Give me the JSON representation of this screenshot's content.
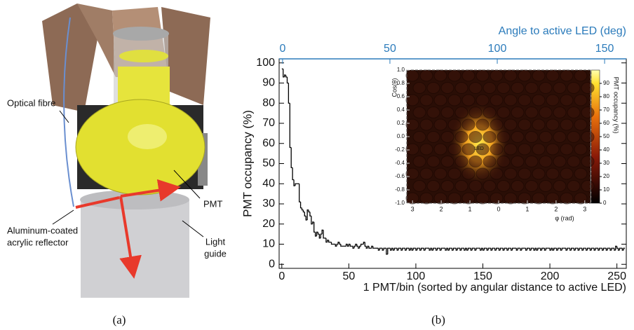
{
  "diagram": {
    "labels": {
      "optical_fibre": "Optical fibre",
      "pmt": "PMT",
      "light_guide": [
        "Light",
        "guide"
      ],
      "reflector": [
        "Aluminum-coated",
        "acrylic reflector"
      ]
    },
    "caption": "(a)"
  },
  "caption_b": "(b)",
  "chart_data": [
    {
      "type": "histogram",
      "ylabel": "PMT occupancy (%)",
      "xlabel": "1 PMT/bin (sorted by angular distance to active LED)",
      "x2label": "Angle to active LED (deg)",
      "x2color": "#2b7bbb",
      "color": "#000000",
      "xlim": [
        -2,
        257
      ],
      "xticks": [
        0,
        50,
        100,
        150,
        200,
        250
      ],
      "ylim": [
        -2,
        102
      ],
      "yticks": [
        0,
        10,
        20,
        30,
        40,
        50,
        60,
        70,
        80,
        90,
        100
      ],
      "x2lim": [
        -1.6,
        160.1
      ],
      "x2ticks": [
        0,
        50,
        100,
        150
      ],
      "bins": [
        0,
        1,
        2,
        3,
        4,
        5,
        6,
        7,
        8,
        9,
        10,
        11,
        12,
        13,
        14,
        15,
        16,
        17,
        18,
        19,
        20,
        21,
        22,
        23,
        24,
        25,
        26,
        27,
        28,
        29,
        30,
        31,
        32,
        33,
        34,
        35,
        36,
        37,
        38,
        39,
        40,
        41,
        42,
        43,
        44,
        45,
        46,
        47,
        48,
        49,
        50,
        51,
        52,
        53,
        54,
        55,
        56,
        57,
        58,
        59,
        60,
        61,
        62,
        63,
        64,
        65,
        66,
        67,
        68,
        69,
        70,
        71,
        72,
        73,
        74,
        75,
        76,
        77,
        78,
        79,
        80,
        81,
        82,
        83,
        84,
        85,
        86,
        87,
        88,
        89,
        90,
        91,
        92,
        93,
        94,
        95,
        96,
        97,
        98,
        99,
        100,
        101,
        102,
        103,
        104,
        105,
        106,
        107,
        108,
        109,
        110,
        111,
        112,
        113,
        114,
        115,
        116,
        117,
        118,
        119,
        120,
        121,
        122,
        123,
        124,
        125,
        126,
        127,
        128,
        129,
        130,
        131,
        132,
        133,
        134,
        135,
        136,
        137,
        138,
        139,
        140,
        141,
        142,
        143,
        144,
        145,
        146,
        147,
        148,
        149,
        150,
        151,
        152,
        153,
        154,
        155,
        156,
        157,
        158,
        159,
        160,
        161,
        162,
        163,
        164,
        165,
        166,
        167,
        168,
        169,
        170,
        171,
        172,
        173,
        174,
        175,
        176,
        177,
        178,
        179,
        180,
        181,
        182,
        183,
        184,
        185,
        186,
        187,
        188,
        189,
        190,
        191,
        192,
        193,
        194,
        195,
        196,
        197,
        198,
        199,
        200,
        201,
        202,
        203,
        204,
        205,
        206,
        207,
        208,
        209,
        210,
        211,
        212,
        213,
        214,
        215,
        216,
        217,
        218,
        219,
        220,
        221,
        222,
        223,
        224,
        225,
        226,
        227,
        228,
        229,
        230,
        231,
        232,
        233,
        234,
        235,
        236,
        237,
        238,
        239,
        240,
        241,
        242,
        243,
        244,
        245,
        246,
        247,
        248,
        249,
        250,
        251,
        252,
        253,
        254,
        255,
        256
      ],
      "values": [
        97,
        93,
        94,
        93,
        90,
        80,
        58,
        48,
        42,
        39,
        40,
        40,
        40,
        31,
        28,
        27,
        26,
        24,
        22,
        27,
        26,
        24,
        20,
        21,
        16,
        14,
        16,
        15,
        13,
        15,
        17,
        13,
        13,
        11,
        12,
        11,
        11,
        10,
        10,
        10,
        9,
        10,
        11,
        10,
        9,
        9,
        9,
        9,
        10,
        9,
        10,
        9,
        9,
        8,
        9,
        10,
        9,
        8,
        9,
        10,
        10,
        11,
        9,
        8,
        9,
        8,
        8,
        9,
        8,
        8,
        8,
        8,
        7,
        8,
        8,
        7,
        8,
        8,
        5,
        8,
        8,
        7,
        8,
        7,
        8,
        8,
        7,
        8,
        8,
        7,
        8,
        8,
        7,
        8,
        8,
        7,
        8,
        7,
        8,
        8,
        7,
        8,
        8,
        7,
        8,
        8,
        7,
        8,
        8,
        8,
        7,
        8,
        7,
        8,
        8,
        7,
        8,
        8,
        7,
        8,
        8,
        8,
        7,
        8,
        7,
        8,
        8,
        7,
        8,
        8,
        7,
        8,
        8,
        7,
        8,
        8,
        7,
        8,
        7,
        8,
        8,
        7,
        8,
        8,
        7,
        8,
        8,
        8,
        7,
        8,
        7,
        8,
        8,
        7,
        8,
        8,
        7,
        8,
        8,
        7,
        8,
        8,
        7,
        8,
        8,
        7,
        8,
        8,
        7,
        8,
        8,
        7,
        8,
        8,
        8,
        7,
        8,
        8,
        7,
        8,
        8,
        8,
        7,
        8,
        8,
        7,
        8,
        8,
        7,
        8,
        7,
        8,
        8,
        7,
        8,
        8,
        7,
        8,
        8,
        8,
        7,
        8,
        7,
        8,
        8,
        7,
        8,
        8,
        7,
        8,
        8,
        8,
        7,
        8,
        8,
        7,
        8,
        8,
        7,
        8,
        8,
        7,
        8,
        8,
        7,
        8,
        8,
        7,
        8,
        8,
        7,
        8,
        8,
        7,
        8,
        8,
        7,
        8,
        8,
        7,
        8,
        8,
        7,
        8,
        8,
        7,
        8,
        8,
        7,
        9,
        8,
        7,
        8,
        8,
        7,
        8
      ]
    },
    {
      "type": "heatmap",
      "xlabel": "φ (rad)",
      "ylabel": "Cos(θ)",
      "colorbar_label": "PMT occupancy (%)",
      "annotation": "LED",
      "xlim": [
        -3.2,
        3.2
      ],
      "xticks": [
        {
          "value": -3,
          "label": "3"
        },
        {
          "value": -2,
          "label": "2"
        },
        {
          "value": -1,
          "label": "1"
        },
        0,
        1,
        2,
        3
      ],
      "ylim": [
        -1,
        1
      ],
      "yticks": [
        {
          "value": -1,
          "label": "-1.0"
        },
        -0.8,
        -0.6,
        -0.4,
        -0.2,
        {
          "value": 0,
          "label": "0.0"
        },
        0.2,
        0.4,
        0.6,
        0.8,
        {
          "value": 1,
          "label": "1.0"
        }
      ],
      "clim": [
        0,
        100
      ],
      "cticks": [
        0,
        10,
        20,
        30,
        40,
        50,
        60,
        70,
        80,
        90
      ]
    }
  ]
}
